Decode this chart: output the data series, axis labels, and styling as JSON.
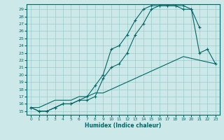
{
  "xlabel": "Humidex (Indice chaleur)",
  "bg_color": "#cce8e8",
  "line_color": "#006666",
  "grid_color": "#99cccc",
  "xlim": [
    -0.5,
    23.5
  ],
  "ylim": [
    14.5,
    29.7
  ],
  "yticks": [
    15,
    16,
    17,
    18,
    19,
    20,
    21,
    22,
    23,
    24,
    25,
    26,
    27,
    28,
    29
  ],
  "xticks": [
    0,
    1,
    2,
    3,
    4,
    5,
    6,
    7,
    8,
    9,
    10,
    11,
    12,
    13,
    14,
    15,
    16,
    17,
    18,
    19,
    20,
    21,
    22,
    23
  ],
  "line1_x": [
    0,
    1,
    2,
    3,
    4,
    5,
    6,
    7,
    8,
    9,
    10,
    11,
    12,
    13,
    14,
    15,
    16,
    17,
    18,
    19,
    20,
    21,
    22,
    23
  ],
  "line1_y": [
    15.5,
    15.0,
    15.0,
    15.5,
    16.0,
    16.0,
    16.5,
    17.0,
    18.5,
    20.0,
    23.5,
    24.0,
    25.5,
    27.5,
    29.0,
    29.5,
    29.5,
    29.5,
    29.5,
    29.0,
    29.0,
    26.5,
    null,
    null
  ],
  "line2_x": [
    0,
    1,
    2,
    3,
    4,
    5,
    6,
    7,
    8,
    9,
    10,
    11,
    12,
    13,
    14,
    15,
    16,
    17,
    18,
    19,
    20,
    21,
    22,
    23
  ],
  "line2_y": [
    15.5,
    15.0,
    15.0,
    15.5,
    16.0,
    16.0,
    16.5,
    16.5,
    17.0,
    19.5,
    21.0,
    21.5,
    23.0,
    25.5,
    27.0,
    29.0,
    29.5,
    29.5,
    29.5,
    29.5,
    29.0,
    23.0,
    23.5,
    21.5
  ],
  "line3_x": [
    0,
    1,
    2,
    3,
    4,
    5,
    6,
    7,
    8,
    9,
    10,
    11,
    12,
    13,
    14,
    15,
    16,
    17,
    18,
    19,
    20,
    21,
    22,
    23
  ],
  "line3_y": [
    15.5,
    15.5,
    16.0,
    16.5,
    16.5,
    16.5,
    17.0,
    17.0,
    17.5,
    17.5,
    18.0,
    18.5,
    19.0,
    19.5,
    20.0,
    20.5,
    21.0,
    21.5,
    22.0,
    22.5,
    null,
    null,
    null,
    21.5
  ]
}
